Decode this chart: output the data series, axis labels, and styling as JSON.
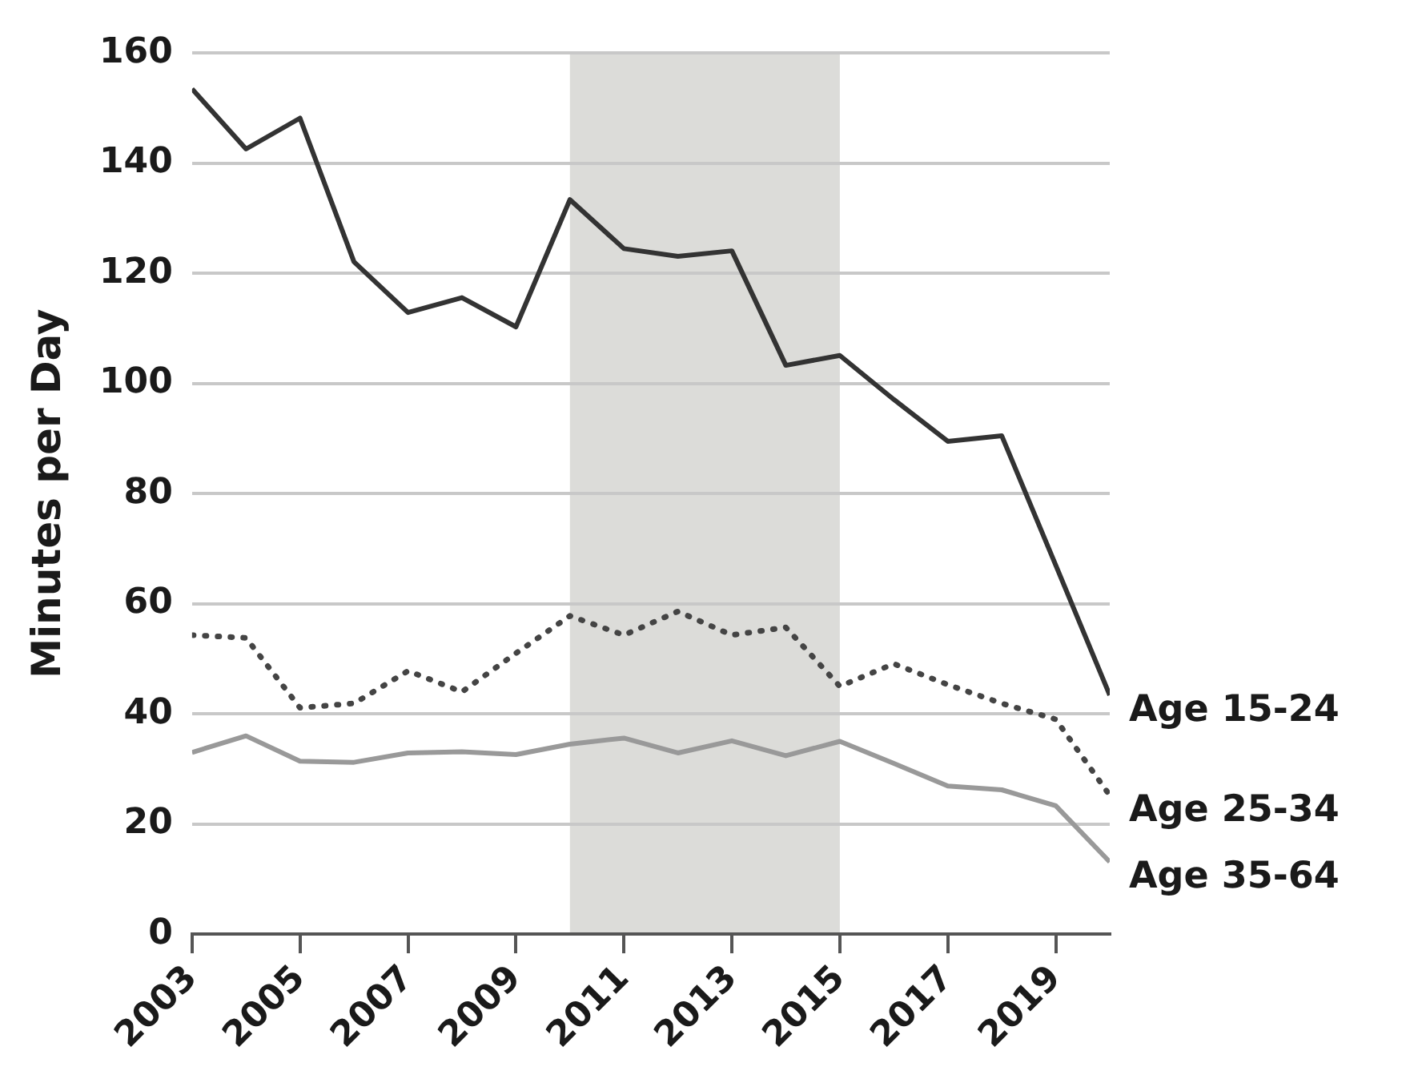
{
  "chart_data": {
    "type": "line",
    "ylabel": "Minutes per Day",
    "x": [
      2003,
      2004,
      2005,
      2006,
      2007,
      2008,
      2009,
      2010,
      2011,
      2012,
      2013,
      2014,
      2015,
      2016,
      2017,
      2018,
      2019,
      2020
    ],
    "series": [
      {
        "name": "Age 15-24",
        "color": "#333333",
        "line_style": "solid",
        "values": [
          153.5,
          142.6,
          148.2,
          122.1,
          112.9,
          115.6,
          110.3,
          133.4,
          124.5,
          123.1,
          124.1,
          103.3,
          105.1,
          97.1,
          89.5,
          90.5,
          67,
          43.4
        ]
      },
      {
        "name": "Age 25-34",
        "color": "#444444",
        "line_style": "dotted",
        "values": [
          54.3,
          53.8,
          41.1,
          41.9,
          47.8,
          44.0,
          51.0,
          57.8,
          54.3,
          58.6,
          54.3,
          55.7,
          45.0,
          49.1,
          45.3,
          41.9,
          39.0,
          25.2
        ]
      },
      {
        "name": "Age 35-64",
        "color": "#999999",
        "line_style": "solid",
        "values": [
          33.0,
          36.0,
          31.4,
          31.2,
          32.9,
          33.1,
          32.6,
          34.5,
          35.6,
          32.9,
          35.1,
          32.4,
          35.0,
          31.0,
          26.9,
          26.2,
          23.3,
          13.1
        ]
      }
    ],
    "xlim": [
      2003,
      2020
    ],
    "xticks": [
      2003,
      2005,
      2007,
      2009,
      2011,
      2013,
      2015,
      2017,
      2019
    ],
    "ylim": [
      0,
      160
    ],
    "yticks": [
      0,
      20,
      40,
      60,
      80,
      100,
      120,
      140,
      160
    ],
    "bands": [
      {
        "axis": "x",
        "from": 2010,
        "to": 2015,
        "color": "#dcdcd9"
      }
    ],
    "grid": "y",
    "legend": false,
    "marker": "none"
  }
}
